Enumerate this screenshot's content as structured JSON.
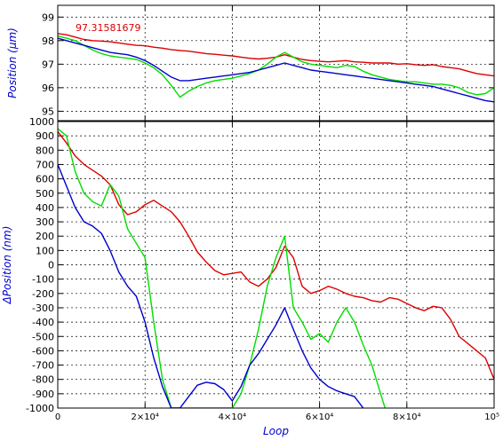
{
  "chart_data": [
    {
      "type": "line",
      "ylabel": "Position (μm)",
      "annotation": "97.31581679",
      "ylim": [
        94.6,
        99.5
      ],
      "yticks": [
        "95",
        "96",
        "97",
        "98",
        "99"
      ],
      "xlim": [
        0,
        100000
      ],
      "grid": true,
      "colors": {
        "red": "#dd0000",
        "green": "#00dd00",
        "blue": "#0000cc"
      },
      "series": [
        {
          "color": "red",
          "x": [
            0,
            2000,
            4000,
            6000,
            8000,
            10000,
            12000,
            14000,
            16000,
            18000,
            20000,
            22000,
            24000,
            26000,
            28000,
            30000,
            32000,
            34000,
            36000,
            38000,
            40000,
            42000,
            44000,
            46000,
            48000,
            50000,
            52000,
            54000,
            56000,
            58000,
            60000,
            62000,
            64000,
            66000,
            68000,
            70000,
            72000,
            74000,
            76000,
            78000,
            80000,
            82000,
            84000,
            86000,
            88000,
            90000,
            92000,
            94000,
            96000,
            98000,
            100000
          ],
          "y": [
            98.3,
            98.25,
            98.15,
            98.05,
            98.0,
            97.98,
            97.95,
            97.9,
            97.85,
            97.8,
            97.78,
            97.72,
            97.68,
            97.62,
            97.58,
            97.55,
            97.5,
            97.45,
            97.42,
            97.38,
            97.35,
            97.3,
            97.25,
            97.22,
            97.25,
            97.3,
            97.4,
            97.3,
            97.2,
            97.15,
            97.12,
            97.1,
            97.12,
            97.15,
            97.1,
            97.08,
            97.05,
            97.05,
            97.05,
            97.0,
            97.02,
            96.98,
            96.95,
            96.98,
            96.9,
            96.85,
            96.8,
            96.7,
            96.6,
            96.55,
            96.5
          ]
        },
        {
          "color": "green",
          "x": [
            0,
            2000,
            4000,
            6000,
            8000,
            10000,
            12000,
            14000,
            16000,
            18000,
            20000,
            22000,
            24000,
            26000,
            28000,
            30000,
            32000,
            34000,
            36000,
            38000,
            40000,
            42000,
            44000,
            46000,
            48000,
            50000,
            52000,
            54000,
            56000,
            58000,
            60000,
            62000,
            64000,
            66000,
            68000,
            70000,
            72000,
            74000,
            76000,
            78000,
            80000,
            82000,
            84000,
            86000,
            88000,
            90000,
            92000,
            94000,
            96000,
            98000,
            100000
          ],
          "y": [
            98.2,
            98.1,
            98.0,
            97.8,
            97.6,
            97.45,
            97.35,
            97.3,
            97.25,
            97.2,
            97.05,
            96.85,
            96.55,
            96.1,
            95.6,
            95.85,
            96.05,
            96.2,
            96.3,
            96.35,
            96.4,
            96.5,
            96.6,
            96.75,
            97.0,
            97.3,
            97.5,
            97.3,
            97.1,
            97.0,
            96.95,
            96.9,
            96.85,
            96.95,
            96.9,
            96.7,
            96.55,
            96.45,
            96.35,
            96.3,
            96.25,
            96.25,
            96.2,
            96.15,
            96.15,
            96.1,
            96.0,
            95.8,
            95.7,
            95.75,
            96.0
          ]
        },
        {
          "color": "blue",
          "x": [
            0,
            2000,
            4000,
            6000,
            8000,
            10000,
            12000,
            14000,
            16000,
            18000,
            20000,
            22000,
            24000,
            26000,
            28000,
            30000,
            32000,
            34000,
            36000,
            38000,
            40000,
            42000,
            44000,
            46000,
            48000,
            50000,
            52000,
            54000,
            56000,
            58000,
            60000,
            62000,
            64000,
            66000,
            68000,
            70000,
            72000,
            74000,
            76000,
            78000,
            80000,
            82000,
            84000,
            86000,
            88000,
            90000,
            92000,
            94000,
            96000,
            98000,
            100000
          ],
          "y": [
            98.1,
            98.0,
            97.9,
            97.8,
            97.7,
            97.6,
            97.5,
            97.45,
            97.4,
            97.3,
            97.15,
            96.95,
            96.7,
            96.45,
            96.3,
            96.3,
            96.35,
            96.4,
            96.45,
            96.5,
            96.55,
            96.6,
            96.65,
            96.75,
            96.85,
            96.95,
            97.05,
            96.95,
            96.85,
            96.75,
            96.7,
            96.65,
            96.6,
            96.55,
            96.5,
            96.45,
            96.4,
            96.35,
            96.3,
            96.25,
            96.2,
            96.15,
            96.1,
            96.05,
            95.95,
            95.85,
            95.75,
            95.65,
            95.55,
            95.45,
            95.4
          ]
        }
      ]
    },
    {
      "type": "line",
      "xlabel": "Loop",
      "ylabel": "ΔPosition (nm)",
      "ylim": [
        -1000,
        1000
      ],
      "yticks": [
        "1000",
        "900",
        "800",
        "700",
        "600",
        "500",
        "400",
        "300",
        "200",
        "100",
        "0",
        "-100",
        "-200",
        "-300",
        "-400",
        "-500",
        "-600",
        "-700",
        "-800",
        "-900",
        "-1000"
      ],
      "xlim": [
        0,
        100000
      ],
      "xticks": [
        "0",
        "2×10⁴",
        "4×10⁴",
        "6×10⁴",
        "8×10⁴",
        "10⁵"
      ],
      "grid": true,
      "series": [
        {
          "color": "red",
          "x": [
            0,
            2000,
            4000,
            6000,
            8000,
            10000,
            12000,
            14000,
            16000,
            18000,
            20000,
            22000,
            24000,
            26000,
            28000,
            30000,
            32000,
            34000,
            36000,
            38000,
            40000,
            42000,
            44000,
            46000,
            48000,
            50000,
            52000,
            54000,
            56000,
            58000,
            60000,
            62000,
            64000,
            66000,
            68000,
            70000,
            72000,
            74000,
            76000,
            78000,
            80000,
            82000,
            84000,
            86000,
            88000,
            90000,
            92000,
            94000,
            96000,
            98000,
            100000
          ],
          "y": [
            930,
            850,
            760,
            700,
            660,
            620,
            560,
            420,
            350,
            370,
            420,
            450,
            410,
            370,
            300,
            200,
            90,
            20,
            -40,
            -70,
            -60,
            -50,
            -120,
            -150,
            -100,
            -20,
            130,
            50,
            -150,
            -200,
            -180,
            -150,
            -170,
            -200,
            -220,
            -230,
            -250,
            -260,
            -230,
            -240,
            -270,
            -300,
            -320,
            -290,
            -300,
            -380,
            -500,
            -550,
            -600,
            -650,
            -800
          ]
        },
        {
          "color": "green",
          "x": [
            0,
            2000,
            4000,
            6000,
            8000,
            10000,
            12000,
            14000,
            16000,
            18000,
            20000,
            22000,
            24000,
            26000,
            28000,
            30000,
            32000,
            34000,
            36000,
            38000,
            40000,
            42000,
            44000,
            46000,
            48000,
            50000,
            52000,
            54000,
            56000,
            58000,
            60000,
            62000,
            64000,
            66000,
            68000,
            70000,
            72000,
            74000,
            75000
          ],
          "y": [
            950,
            900,
            650,
            500,
            440,
            410,
            560,
            480,
            250,
            150,
            50,
            -400,
            -800,
            -1000,
            -1000,
            -1000,
            -1000,
            -1000,
            -1000,
            -1000,
            -1000,
            -900,
            -700,
            -450,
            -150,
            50,
            200,
            -300,
            -400,
            -520,
            -480,
            -540,
            -400,
            -300,
            -400,
            -560,
            -700,
            -900,
            -1000
          ]
        },
        {
          "color": "blue",
          "x": [
            0,
            2000,
            4000,
            6000,
            8000,
            10000,
            12000,
            14000,
            16000,
            18000,
            20000,
            22000,
            24000,
            26000,
            28000,
            30000,
            32000,
            34000,
            36000,
            38000,
            40000,
            42000,
            44000,
            46000,
            48000,
            50000,
            52000,
            54000,
            56000,
            58000,
            60000,
            62000,
            64000,
            66000,
            68000,
            70000
          ],
          "y": [
            700,
            550,
            400,
            300,
            270,
            220,
            100,
            -50,
            -150,
            -220,
            -400,
            -650,
            -850,
            -1000,
            -1000,
            -920,
            -840,
            -820,
            -830,
            -870,
            -950,
            -850,
            -700,
            -620,
            -520,
            -420,
            -300,
            -450,
            -600,
            -720,
            -800,
            -850,
            -880,
            -900,
            -920,
            -1000
          ]
        }
      ]
    }
  ]
}
